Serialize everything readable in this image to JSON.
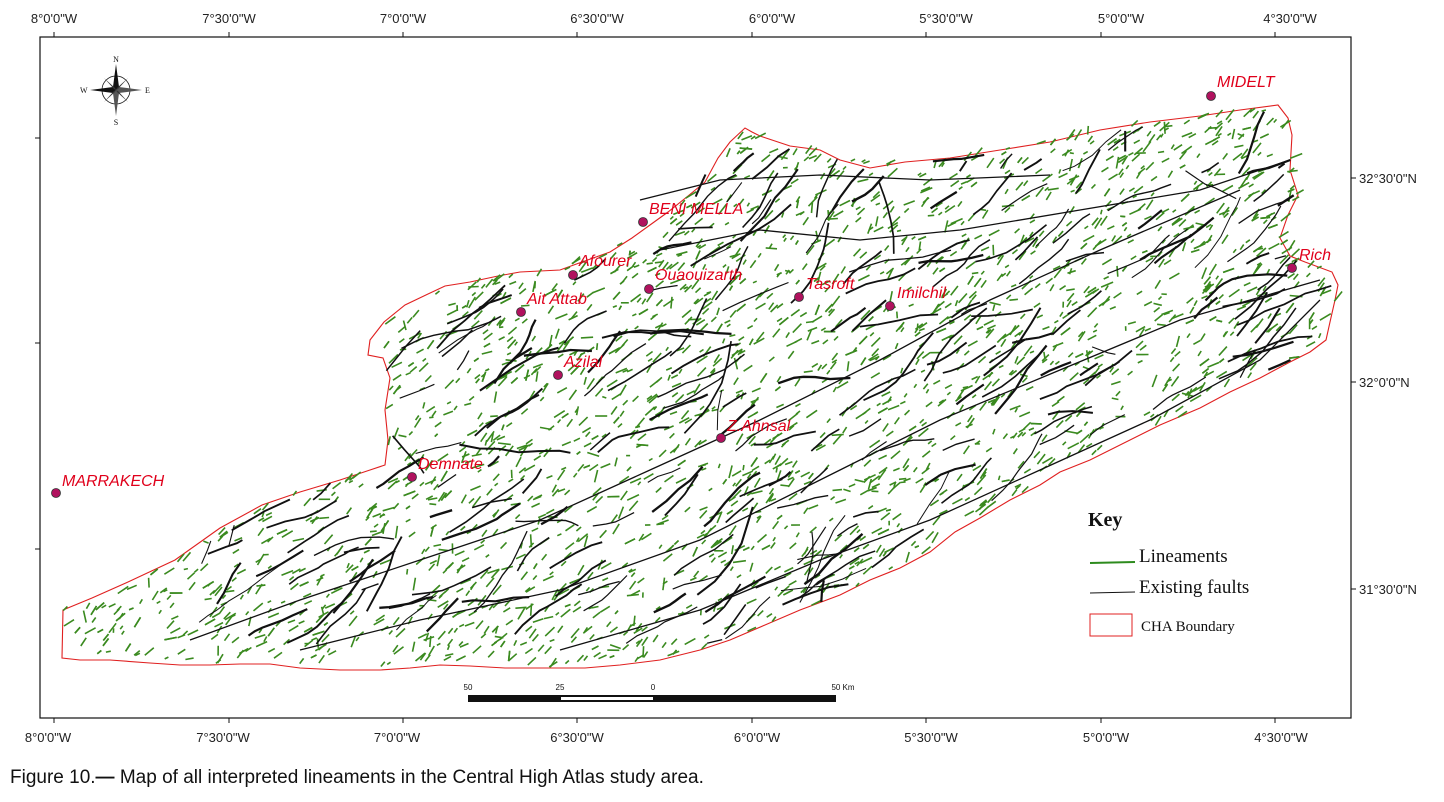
{
  "map": {
    "top_longitude_labels": [
      "8°0'0\"W",
      "7°30'0\"W",
      "7°0'0\"W",
      "6°30'0\"W",
      "6°0'0\"W",
      "5°30'0\"W",
      "5°0'0\"W",
      "4°30'0\"W"
    ],
    "bottom_longitude_labels": [
      "8°0'0\"W",
      "7°30'0\"W",
      "7°0'0\"W",
      "6°30'0\"W",
      "6°0'0\"W",
      "5°30'0\"W",
      "5°0'0\"W",
      "4°30'0\"W"
    ],
    "right_latitude_labels": [
      "32°30'0\"N",
      "32°0'0\"N",
      "31°30'0\"N"
    ],
    "places": [
      {
        "name": "MIDELT"
      },
      {
        "name": "BENI MELLA"
      },
      {
        "name": "Rich"
      },
      {
        "name": "Afourer"
      },
      {
        "name": "Ouaouizarth"
      },
      {
        "name": "Tasroft"
      },
      {
        "name": "Ait Attab"
      },
      {
        "name": "Imilchil"
      },
      {
        "name": "Azilal"
      },
      {
        "name": "Z.Ahnsal"
      },
      {
        "name": "Demnate"
      },
      {
        "name": "MARRAKECH"
      }
    ],
    "compass": {
      "n": "N",
      "s": "S",
      "e": "E",
      "w": "W"
    },
    "scale_bar": {
      "labels": [
        "50",
        "25",
        "0",
        "50 Km"
      ]
    },
    "key": {
      "title": "Key",
      "items": [
        {
          "label": "Lineaments",
          "color": "#2e8b1e"
        },
        {
          "label": "Existing faults",
          "color": "#111111"
        },
        {
          "label": "CHA Boundary",
          "color": "#e02020"
        }
      ]
    },
    "colors": {
      "lineament": "#3a8a1f",
      "fault": "#111111",
      "boundary": "#e02020",
      "place_marker": "#b0125e",
      "place_label": "#e0001b"
    }
  },
  "caption": {
    "prefix": "Figure 10.",
    "dash": "—",
    "text": " Map of all interpreted lineaments in the Central High Atlas study area."
  }
}
